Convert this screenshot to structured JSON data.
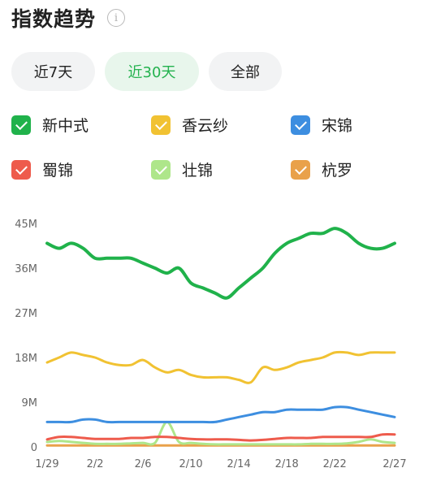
{
  "header": {
    "title": "指数趋势",
    "info_icon_glyph": "i"
  },
  "tabs": [
    {
      "label": "近7天",
      "active": false
    },
    {
      "label": "近30天",
      "active": true
    },
    {
      "label": "全部",
      "active": false
    }
  ],
  "colors": {
    "active_tab_text": "#23b24e",
    "active_tab_bg": "#e8f6ec"
  },
  "chart_data": {
    "type": "line",
    "x": [
      "1/29",
      "1/30",
      "1/31",
      "2/1",
      "2/2",
      "2/3",
      "2/4",
      "2/5",
      "2/6",
      "2/7",
      "2/8",
      "2/9",
      "2/10",
      "2/11",
      "2/12",
      "2/13",
      "2/14",
      "2/15",
      "2/16",
      "2/17",
      "2/18",
      "2/19",
      "2/20",
      "2/21",
      "2/22",
      "2/23",
      "2/24",
      "2/25",
      "2/26",
      "2/27"
    ],
    "x_tick_labels": [
      "1/29",
      "2/2",
      "2/6",
      "2/10",
      "2/14",
      "2/18",
      "2/22",
      "2/27"
    ],
    "y_tick_labels": [
      "0",
      "9M",
      "18M",
      "27M",
      "36M",
      "45M"
    ],
    "ylim": [
      0,
      45
    ],
    "unit": "M",
    "grid": false,
    "series": [
      {
        "name": "新中式",
        "color": "#20b24b",
        "selected": true,
        "values": [
          41,
          40,
          41,
          40,
          38,
          38,
          38,
          38,
          37,
          36,
          35,
          36,
          33,
          32,
          31,
          30,
          32,
          34,
          36,
          39,
          41,
          42,
          43,
          43,
          44,
          43,
          41,
          40,
          40,
          41
        ]
      },
      {
        "name": "香云纱",
        "color": "#f1c232",
        "selected": true,
        "values": [
          17,
          18,
          19,
          18.5,
          18,
          17,
          16.5,
          16.5,
          17.5,
          16,
          15,
          15.5,
          14.5,
          14,
          14,
          14,
          13.5,
          13,
          16,
          15.5,
          16,
          17,
          17.5,
          18,
          19,
          19,
          18.5,
          19,
          19,
          19
        ]
      },
      {
        "name": "宋锦",
        "color": "#3d8ee0",
        "selected": true,
        "values": [
          5,
          5,
          5,
          5.5,
          5.5,
          5,
          5,
          5,
          5,
          5,
          5,
          5,
          5,
          5,
          5,
          5.5,
          6,
          6.5,
          7,
          7,
          7.5,
          7.5,
          7.5,
          7.5,
          8,
          8,
          7.5,
          7,
          6.5,
          6
        ]
      },
      {
        "name": "蜀锦",
        "color": "#ee5b4c",
        "selected": true,
        "values": [
          1.5,
          2,
          2,
          1.8,
          1.6,
          1.6,
          1.6,
          1.8,
          1.8,
          2,
          2,
          1.8,
          1.6,
          1.5,
          1.5,
          1.5,
          1.4,
          1.3,
          1.4,
          1.6,
          1.8,
          1.8,
          1.8,
          2,
          2,
          2,
          2,
          2,
          2.5,
          2.5
        ]
      },
      {
        "name": "壮锦",
        "color": "#aee68a",
        "selected": true,
        "values": [
          1,
          1.2,
          1,
          0.8,
          0.6,
          0.6,
          0.6,
          0.7,
          0.8,
          0.8,
          5,
          1,
          0.8,
          0.6,
          0.5,
          0.5,
          0.5,
          0.5,
          0.5,
          0.5,
          0.5,
          0.5,
          0.6,
          0.6,
          0.6,
          0.7,
          1,
          1.5,
          1,
          0.8
        ]
      },
      {
        "name": "杭罗",
        "color": "#e9a14a",
        "selected": true,
        "values": [
          0.3,
          0.3,
          0.3,
          0.3,
          0.3,
          0.3,
          0.3,
          0.3,
          0.3,
          0.3,
          0.3,
          0.3,
          0.3,
          0.3,
          0.3,
          0.3,
          0.3,
          0.3,
          0.3,
          0.3,
          0.3,
          0.3,
          0.3,
          0.3,
          0.3,
          0.3,
          0.3,
          0.3,
          0.3,
          0.3
        ]
      }
    ]
  }
}
